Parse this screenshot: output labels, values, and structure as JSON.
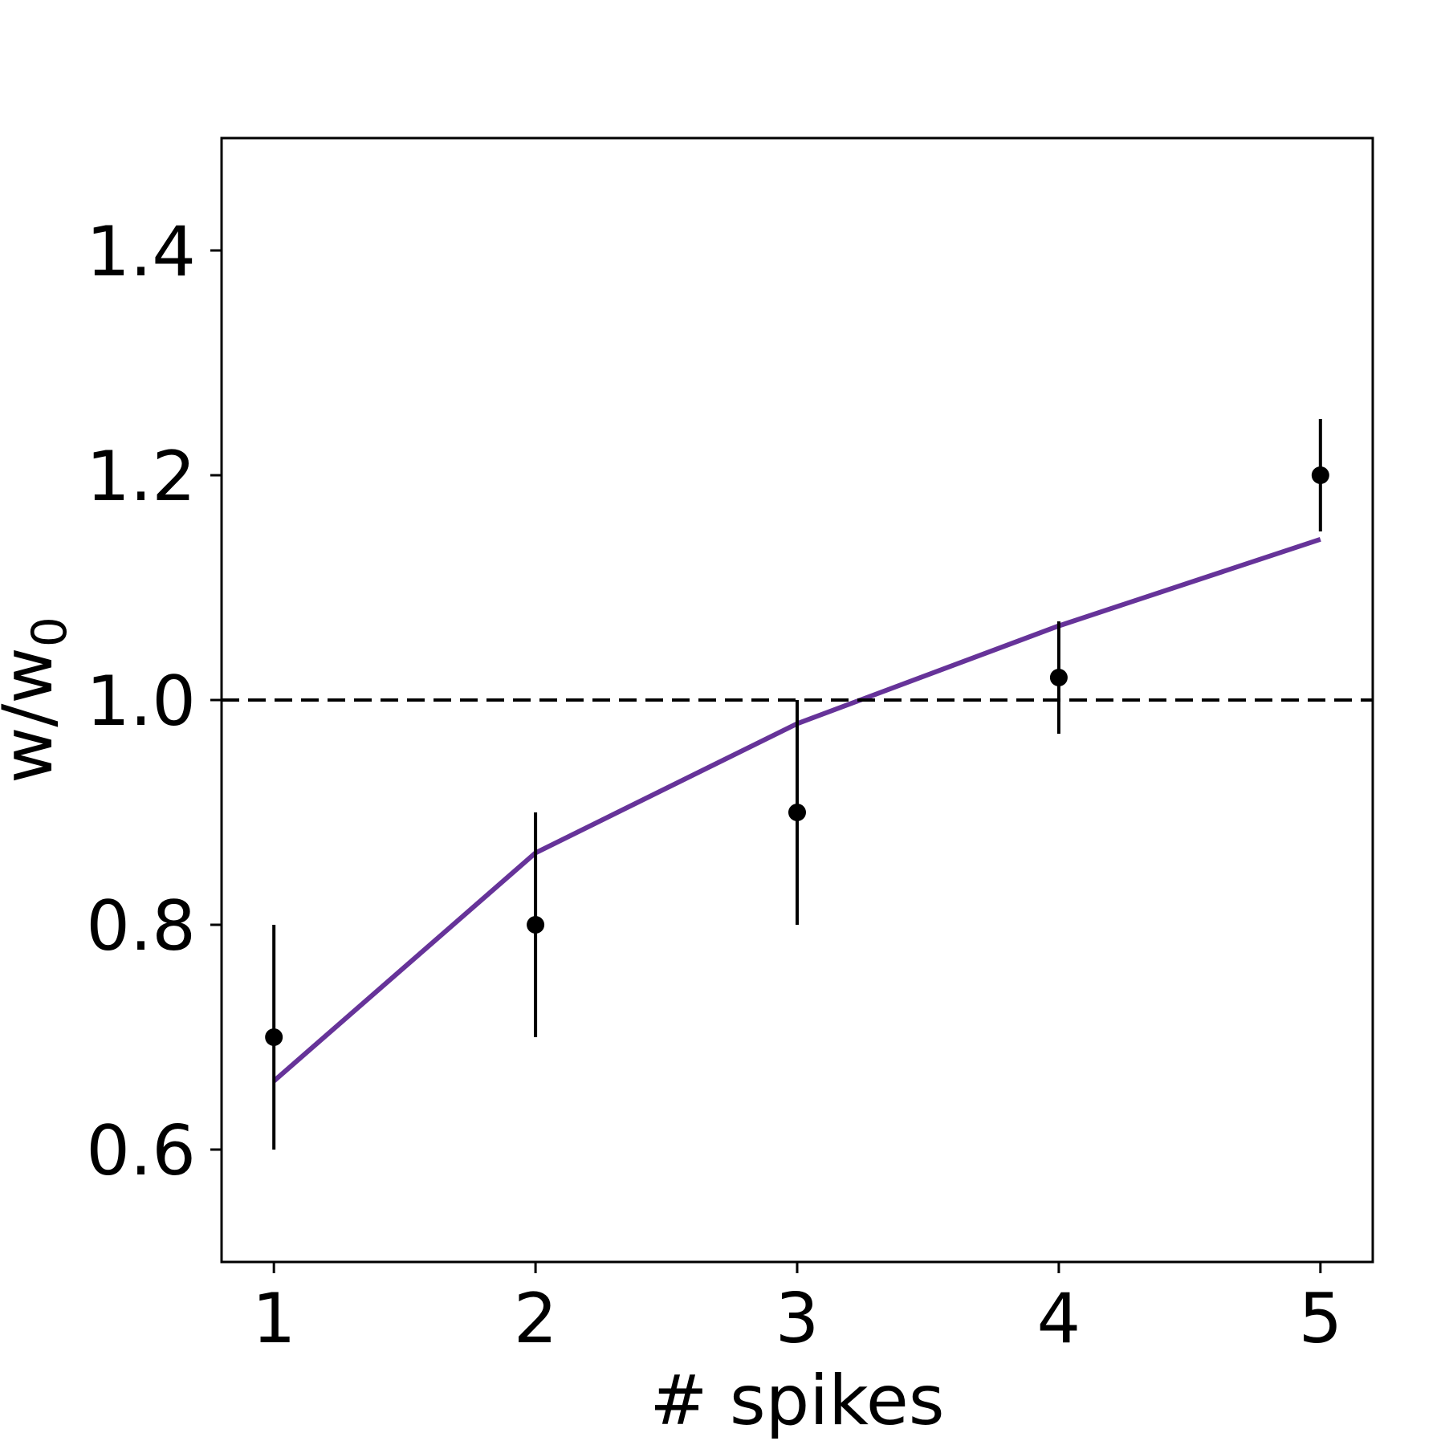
{
  "chart_data": {
    "type": "line",
    "xlabel": "# spikes",
    "ylabel": "w/w",
    "ylabel_subscript": "0",
    "xlim": [
      0.8,
      5.2
    ],
    "ylim": [
      0.5,
      1.5
    ],
    "x_ticks": [
      1,
      2,
      3,
      4,
      5
    ],
    "x_tick_labels": [
      "1",
      "2",
      "3",
      "4",
      "5"
    ],
    "y_ticks": [
      0.6,
      0.8,
      1.0,
      1.2,
      1.4
    ],
    "y_tick_labels": [
      "0.6",
      "0.8",
      "1.0",
      "1.2",
      "1.4"
    ],
    "grid": false,
    "series": [
      {
        "kind": "errorbar",
        "color": "#000000",
        "x": [
          1,
          2,
          3,
          4,
          5
        ],
        "y": [
          0.7,
          0.8,
          0.9,
          1.02,
          1.2
        ],
        "err_low": [
          0.1,
          0.1,
          0.1,
          0.05,
          0.05
        ],
        "err_high": [
          0.1,
          0.1,
          0.1,
          0.05,
          0.05
        ]
      },
      {
        "kind": "line",
        "color": "#663399",
        "x": [
          1,
          2,
          3,
          4,
          5
        ],
        "y": [
          0.661,
          0.864,
          0.979,
          1.066,
          1.143
        ]
      },
      {
        "kind": "reference-line",
        "color": "#000000",
        "style": "dashed",
        "y": 1.0
      }
    ]
  }
}
